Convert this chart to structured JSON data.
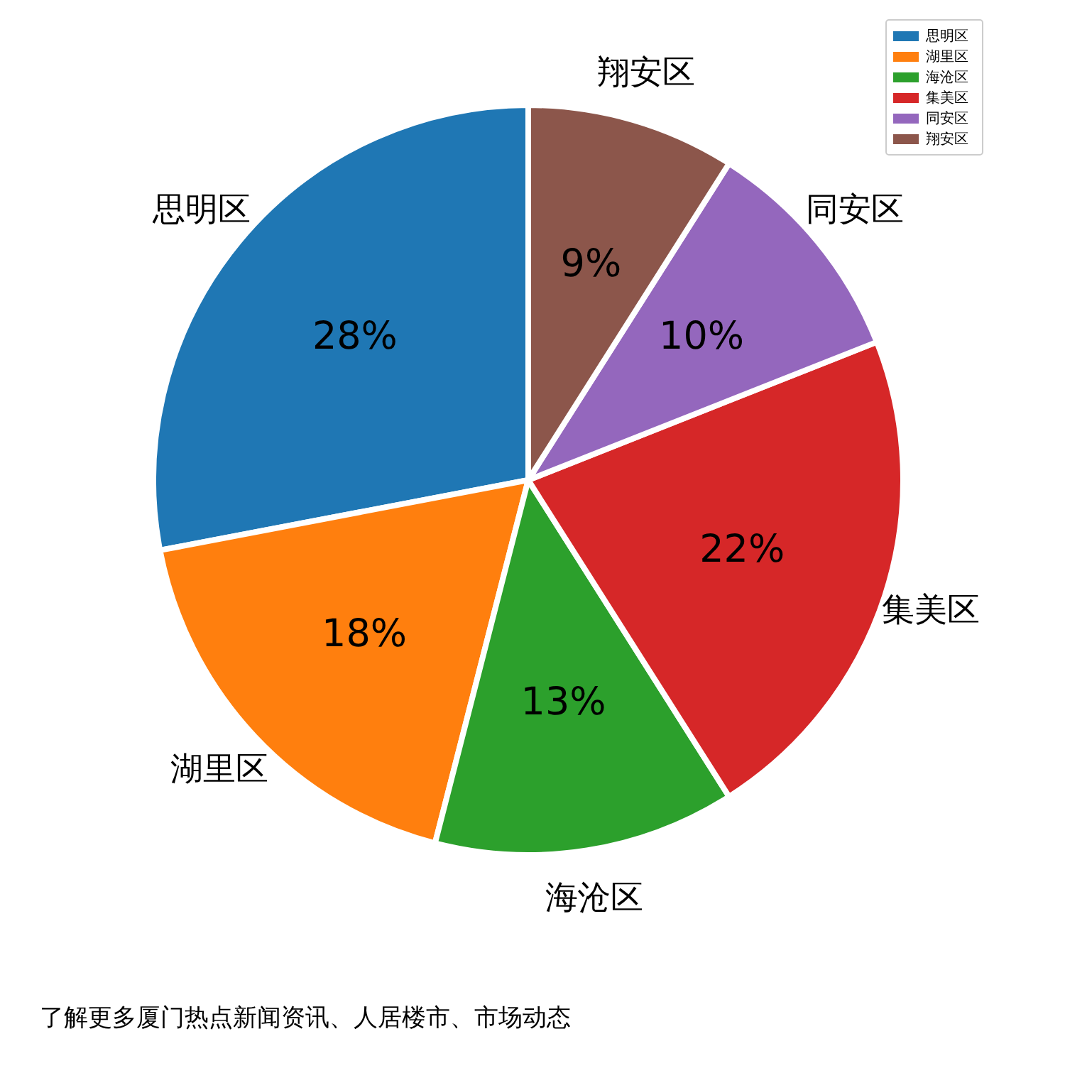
{
  "chart_data": {
    "type": "pie",
    "categories": [
      "思明区",
      "湖里区",
      "海沧区",
      "集美区",
      "同安区",
      "翔安区"
    ],
    "values": [
      28,
      18,
      13,
      22,
      10,
      9
    ],
    "colors": [
      "#1f77b4",
      "#ff7f0e",
      "#2ca02c",
      "#d62728",
      "#9467bd",
      "#8c564b"
    ],
    "value_labels": [
      "28%",
      "18%",
      "13%",
      "22%",
      "10%",
      "9%"
    ],
    "legend": "top right",
    "annotations": [
      "了解更多厦门热点新闻资讯、人居楼市、市场动态"
    ]
  }
}
